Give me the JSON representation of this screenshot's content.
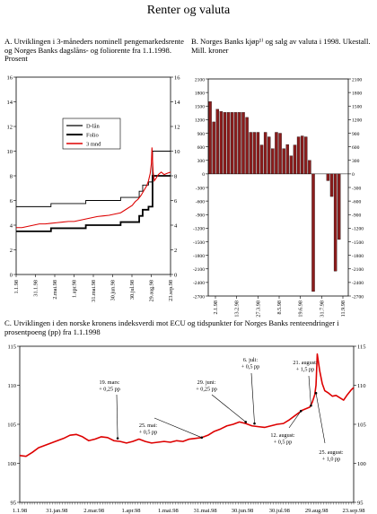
{
  "page": {
    "title": "Renter og valuta"
  },
  "chart_data": [
    {
      "type": "line",
      "label": "A.",
      "title": "Utviklingen i 3-måneders nominell pengemarkedsrente og Norges Banks dagslåns- og foliorente fra 1.1.1998. Prosent",
      "ylim": [
        0,
        16
      ],
      "yticks": [
        0,
        2,
        4,
        6,
        8,
        10,
        12,
        14,
        16
      ],
      "xticks": [
        "1.1.98",
        "31.1.98",
        "2.mai.98",
        "1.apr.98",
        "31.mai.98",
        "30.jun.98",
        "30.jul.98",
        "29.aug.98",
        "23.sep.98"
      ],
      "legend_position": "upper-right",
      "series": [
        {
          "name": "D-lån",
          "color": "#000000",
          "x": [
            0,
            31,
            60,
            120,
            180,
            212,
            218,
            228,
            235,
            239,
            266
          ],
          "y": [
            5.5,
            5.5,
            5.75,
            6.0,
            6.25,
            6.75,
            7.25,
            7.5,
            10.0,
            10.0,
            10.0
          ]
        },
        {
          "name": "Folio",
          "color": "#000000",
          "x": [
            0,
            31,
            60,
            120,
            180,
            212,
            218,
            228,
            235,
            239,
            266
          ],
          "y": [
            3.5,
            3.5,
            3.75,
            4.0,
            4.25,
            4.75,
            5.25,
            5.5,
            8.0,
            8.0,
            8.0
          ]
        },
        {
          "name": "3 mnd",
          "color": "#dd0000",
          "x": [
            0,
            10,
            20,
            30,
            40,
            50,
            60,
            70,
            80,
            90,
            100,
            110,
            120,
            130,
            140,
            150,
            160,
            170,
            180,
            190,
            200,
            205,
            210,
            215,
            220,
            225,
            228,
            231,
            233,
            234,
            236,
            238,
            241,
            245,
            250,
            255,
            260,
            266
          ],
          "y": [
            3.8,
            3.8,
            3.9,
            4.0,
            4.1,
            4.1,
            4.15,
            4.2,
            4.25,
            4.3,
            4.3,
            4.4,
            4.5,
            4.6,
            4.7,
            4.75,
            4.8,
            4.9,
            5.0,
            5.3,
            5.6,
            5.9,
            6.1,
            6.4,
            6.8,
            7.2,
            7.6,
            8.2,
            9.0,
            10.3,
            8.3,
            7.6,
            7.8,
            8.1,
            8.3,
            8.1,
            8.2,
            8.3
          ]
        }
      ]
    },
    {
      "type": "bar",
      "label": "B.",
      "title": "Norges Banks kjøp¹⁾ og salg av valuta i 1998. Ukestall. Mill. kroner",
      "ylim": [
        -2700,
        2100
      ],
      "yticks": [
        2100,
        1800,
        1500,
        1200,
        900,
        600,
        300,
        0,
        -300,
        -600,
        -900,
        -1200,
        -1500,
        -1800,
        -2100,
        -2400,
        -2700
      ],
      "xticks": [
        "2.1.98",
        "13.2.98",
        "27.3.98",
        "8.5.98",
        "19.6.98",
        "31.7.98",
        "11.9.98"
      ],
      "bar_color": "#8b1c1c",
      "values": [
        1600,
        1150,
        1430,
        1380,
        1360,
        1360,
        1360,
        1360,
        1360,
        1360,
        1250,
        920,
        920,
        920,
        640,
        920,
        820,
        560,
        920,
        900,
        560,
        650,
        400,
        640,
        820,
        840,
        820,
        300,
        -2600,
        0,
        0,
        0,
        -150,
        -500,
        -2150,
        -1450,
        0,
        0
      ]
    },
    {
      "type": "line",
      "label": "C.",
      "title": "Utviklingen i den norske kronens indeksverdi mot ECU og tidspunkter for Norges Banks renteendringer i prosentpoeng (pp) fra 1.1.1998",
      "ylim": [
        95,
        115
      ],
      "yticks": [
        95,
        100,
        105,
        110,
        115
      ],
      "xticks": [
        "1.1.98",
        "31.jan.98",
        "2.mar.98",
        "1.apr.98",
        "1.mai.98",
        "31.mai.98",
        "30.jun.98",
        "30.jul.98",
        "29.aug.98",
        "23.sep.98"
      ],
      "series": [
        {
          "name": "",
          "color": "#dd0000",
          "x": [
            0,
            5,
            10,
            15,
            20,
            25,
            30,
            35,
            40,
            45,
            50,
            55,
            60,
            65,
            70,
            75,
            80,
            85,
            90,
            95,
            100,
            105,
            110,
            115,
            120,
            125,
            130,
            135,
            140,
            145,
            150,
            155,
            160,
            165,
            170,
            175,
            180,
            185,
            190,
            195,
            200,
            205,
            210,
            215,
            220,
            225,
            228,
            231,
            233,
            235,
            236,
            237,
            239,
            241,
            243,
            246,
            249,
            252,
            255,
            258,
            261,
            264,
            266
          ],
          "y": [
            101.0,
            100.9,
            101.4,
            102.0,
            102.3,
            102.6,
            102.9,
            103.2,
            103.6,
            103.7,
            103.4,
            102.9,
            103.1,
            103.4,
            103.3,
            102.9,
            102.8,
            102.6,
            102.8,
            103.1,
            102.8,
            102.6,
            102.7,
            102.8,
            102.7,
            102.9,
            102.8,
            103.1,
            103.2,
            103.3,
            103.6,
            104.1,
            104.4,
            104.8,
            105.0,
            105.3,
            105.1,
            104.8,
            104.7,
            104.6,
            104.8,
            105.0,
            105.1,
            105.6,
            106.2,
            106.8,
            107.0,
            107.2,
            107.8,
            108.8,
            110.0,
            114.0,
            111.8,
            110.2,
            109.3,
            109.0,
            108.6,
            108.7,
            108.4,
            108.1,
            108.8,
            109.4,
            109.7
          ]
        }
      ],
      "annotations": [
        {
          "date": "19. mars:",
          "change": "+ 0,25 pp",
          "x": 78,
          "y": 103.2
        },
        {
          "date": "25. mai:",
          "change": "+ 0,5 pp",
          "x": 145,
          "y": 103.3
        },
        {
          "date": "29. juni:",
          "change": "+ 0,25 pp",
          "x": 180,
          "y": 105.3
        },
        {
          "date": "6. juli:",
          "change": "+ 0,5 pp",
          "x": 187,
          "y": 105.1
        },
        {
          "date": "21. august:",
          "change": "+ 1,5 pp",
          "x": 232,
          "y": 107.4
        },
        {
          "date": "12. august:",
          "change": "+ 0,5 pp",
          "x": 224,
          "y": 106.7
        },
        {
          "date": "25. august:",
          "change": "+ 1,0 pp",
          "x": 236,
          "y": 109.0
        }
      ]
    }
  ]
}
